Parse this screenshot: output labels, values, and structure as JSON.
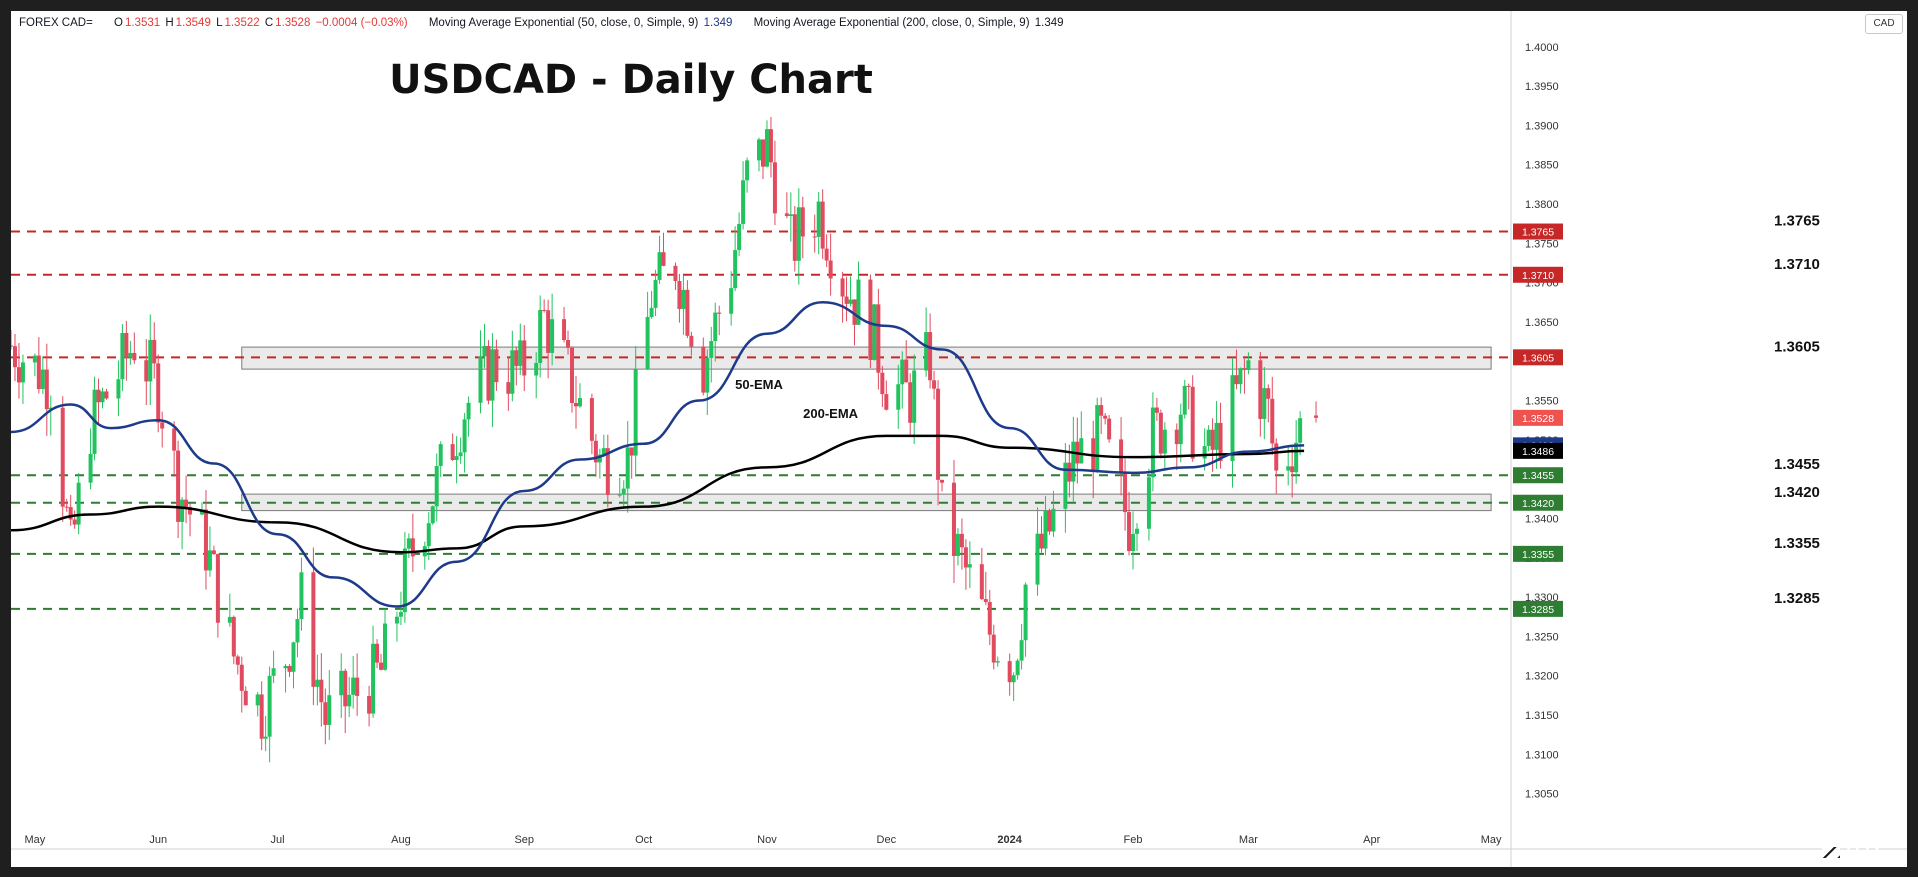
{
  "header": {
    "symbol": "FOREX CAD=",
    "open_label": "O",
    "open": "1.3531",
    "high_label": "H",
    "high": "1.3549",
    "low_label": "L",
    "low": "1.3522",
    "close_label": "C",
    "close": "1.3528",
    "change": "−0.0004 (−0.03%)",
    "ma1_text": "Moving Average Exponential (50, close, 0, Simple, 9)",
    "ma1_value": "1.349",
    "ma2_text": "Moving Average Exponential (200, close, 0, Simple, 9)",
    "ma2_value": "1.349",
    "currency": "CAD"
  },
  "logo": "LSEG",
  "chart_data": {
    "type": "candlestick",
    "title": "USDCAD - Daily Chart",
    "ylim": [
      1.3005,
      1.4015
    ],
    "y_ticks": [
      "1.4000",
      "1.3950",
      "1.3900",
      "1.3850",
      "1.3800",
      "1.3750",
      "1.3700",
      "1.3650",
      "1.3600",
      "1.3550",
      "1.3500",
      "1.3450",
      "1.3400",
      "1.3350",
      "1.3300",
      "1.3250",
      "1.3200",
      "1.3150",
      "1.3100",
      "1.3050"
    ],
    "x_labels": [
      {
        "label": "May",
        "date": "2023-05-01"
      },
      {
        "label": "Jun",
        "date": "2023-06-01"
      },
      {
        "label": "Jul",
        "date": "2023-07-01"
      },
      {
        "label": "Aug",
        "date": "2023-08-01"
      },
      {
        "label": "Sep",
        "date": "2023-09-01"
      },
      {
        "label": "Oct",
        "date": "2023-10-01"
      },
      {
        "label": "Nov",
        "date": "2023-11-01"
      },
      {
        "label": "Dec",
        "date": "2023-12-01"
      },
      {
        "label": "2024",
        "date": "2024-01-01"
      },
      {
        "label": "Feb",
        "date": "2024-02-01"
      },
      {
        "label": "Mar",
        "date": "2024-03-01"
      },
      {
        "label": "Apr",
        "date": "2024-04-01"
      },
      {
        "label": "May",
        "date": "2024-05-01"
      }
    ],
    "series": [
      {
        "name": "USDCAD",
        "closes": [
          {
            "date": "2023-04-25",
            "close": 1.362
          },
          {
            "date": "2023-05-05",
            "close": 1.3575
          },
          {
            "date": "2023-05-10",
            "close": 1.3355
          },
          {
            "date": "2023-05-15",
            "close": 1.352
          },
          {
            "date": "2023-05-22",
            "close": 1.3585
          },
          {
            "date": "2023-05-26",
            "close": 1.3625
          },
          {
            "date": "2023-06-01",
            "close": 1.3565
          },
          {
            "date": "2023-06-06",
            "close": 1.344
          },
          {
            "date": "2023-06-13",
            "close": 1.3365
          },
          {
            "date": "2023-06-20",
            "close": 1.3225
          },
          {
            "date": "2023-06-27",
            "close": 1.3155
          },
          {
            "date": "2023-07-03",
            "close": 1.3225
          },
          {
            "date": "2023-07-07",
            "close": 1.3295
          },
          {
            "date": "2023-07-13",
            "close": 1.3145
          },
          {
            "date": "2023-07-20",
            "close": 1.3175
          },
          {
            "date": "2023-07-27",
            "close": 1.3205
          },
          {
            "date": "2023-08-03",
            "close": 1.3345
          },
          {
            "date": "2023-08-10",
            "close": 1.3445
          },
          {
            "date": "2023-08-17",
            "close": 1.354
          },
          {
            "date": "2023-08-24",
            "close": 1.3595
          },
          {
            "date": "2023-08-31",
            "close": 1.3585
          },
          {
            "date": "2023-09-06",
            "close": 1.3655
          },
          {
            "date": "2023-09-13",
            "close": 1.357
          },
          {
            "date": "2023-09-20",
            "close": 1.3475
          },
          {
            "date": "2023-09-27",
            "close": 1.3475
          },
          {
            "date": "2023-10-03",
            "close": 1.3685
          },
          {
            "date": "2023-10-09",
            "close": 1.3725
          },
          {
            "date": "2023-10-16",
            "close": 1.3595
          },
          {
            "date": "2023-10-23",
            "close": 1.3715
          },
          {
            "date": "2023-10-27",
            "close": 1.3835
          },
          {
            "date": "2023-11-01",
            "close": 1.3875
          },
          {
            "date": "2023-11-07",
            "close": 1.3745
          },
          {
            "date": "2023-11-14",
            "close": 1.3795
          },
          {
            "date": "2023-11-20",
            "close": 1.3705
          },
          {
            "date": "2023-11-27",
            "close": 1.3645
          },
          {
            "date": "2023-12-01",
            "close": 1.3575
          },
          {
            "date": "2023-12-07",
            "close": 1.3555
          },
          {
            "date": "2023-12-12",
            "close": 1.3605
          },
          {
            "date": "2023-12-15",
            "close": 1.3405
          },
          {
            "date": "2023-12-20",
            "close": 1.3345
          },
          {
            "date": "2023-12-27",
            "close": 1.3255
          },
          {
            "date": "2024-01-02",
            "close": 1.3215
          },
          {
            "date": "2024-01-05",
            "close": 1.3315
          },
          {
            "date": "2024-01-11",
            "close": 1.3385
          },
          {
            "date": "2024-01-17",
            "close": 1.3475
          },
          {
            "date": "2024-01-24",
            "close": 1.3505
          },
          {
            "date": "2024-01-31",
            "close": 1.3395
          },
          {
            "date": "2024-02-06",
            "close": 1.3505
          },
          {
            "date": "2024-02-13",
            "close": 1.3545
          },
          {
            "date": "2024-02-20",
            "close": 1.3475
          },
          {
            "date": "2024-02-27",
            "close": 1.3555
          },
          {
            "date": "2024-03-01",
            "close": 1.3595
          },
          {
            "date": "2024-03-06",
            "close": 1.3535
          },
          {
            "date": "2024-03-08",
            "close": 1.3455
          },
          {
            "date": "2024-03-13",
            "close": 1.3505
          },
          {
            "date": "2024-03-15",
            "close": 1.3528
          }
        ]
      },
      {
        "name": "50-EMA",
        "points": [
          {
            "date": "2023-04-25",
            "value": 1.351
          },
          {
            "date": "2023-05-10",
            "value": 1.3545
          },
          {
            "date": "2023-05-20",
            "value": 1.3515
          },
          {
            "date": "2023-06-01",
            "value": 1.3525
          },
          {
            "date": "2023-06-15",
            "value": 1.347
          },
          {
            "date": "2023-07-01",
            "value": 1.338
          },
          {
            "date": "2023-07-15",
            "value": 1.3325
          },
          {
            "date": "2023-07-31",
            "value": 1.3288
          },
          {
            "date": "2023-08-15",
            "value": 1.3345
          },
          {
            "date": "2023-09-01",
            "value": 1.3435
          },
          {
            "date": "2023-09-15",
            "value": 1.3475
          },
          {
            "date": "2023-10-01",
            "value": 1.3495
          },
          {
            "date": "2023-10-15",
            "value": 1.355
          },
          {
            "date": "2023-11-01",
            "value": 1.3635
          },
          {
            "date": "2023-11-15",
            "value": 1.3675
          },
          {
            "date": "2023-12-01",
            "value": 1.3645
          },
          {
            "date": "2023-12-15",
            "value": 1.3615
          },
          {
            "date": "2024-01-01",
            "value": 1.3515
          },
          {
            "date": "2024-01-15",
            "value": 1.3462
          },
          {
            "date": "2024-02-01",
            "value": 1.3458
          },
          {
            "date": "2024-02-15",
            "value": 1.3465
          },
          {
            "date": "2024-03-01",
            "value": 1.3485
          },
          {
            "date": "2024-03-15",
            "value": 1.3493
          }
        ]
      },
      {
        "name": "200-EMA",
        "points": [
          {
            "date": "2023-04-25",
            "value": 1.3385
          },
          {
            "date": "2023-05-15",
            "value": 1.3405
          },
          {
            "date": "2023-06-01",
            "value": 1.3415
          },
          {
            "date": "2023-07-01",
            "value": 1.3395
          },
          {
            "date": "2023-08-01",
            "value": 1.3357
          },
          {
            "date": "2023-08-15",
            "value": 1.3362
          },
          {
            "date": "2023-09-01",
            "value": 1.339
          },
          {
            "date": "2023-10-01",
            "value": 1.3415
          },
          {
            "date": "2023-11-01",
            "value": 1.3465
          },
          {
            "date": "2023-12-01",
            "value": 1.3505
          },
          {
            "date": "2023-12-15",
            "value": 1.3505
          },
          {
            "date": "2024-01-01",
            "value": 1.349
          },
          {
            "date": "2024-02-01",
            "value": 1.3478
          },
          {
            "date": "2024-03-01",
            "value": 1.3482
          },
          {
            "date": "2024-03-15",
            "value": 1.3486
          }
        ]
      }
    ],
    "annotations": [
      {
        "text": "50-EMA",
        "date": "2023-10-30",
        "value": 1.3565
      },
      {
        "text": "200-EMA",
        "date": "2023-11-17",
        "value": 1.3528
      }
    ],
    "levels": [
      {
        "value": 1.3765,
        "label": "1.3765",
        "color": "#c62828"
      },
      {
        "value": 1.371,
        "label": "1.3710",
        "color": "#c62828"
      },
      {
        "value": 1.3605,
        "label": "1.3605",
        "color": "#c62828"
      },
      {
        "value": 1.3455,
        "label": "1.3455",
        "color": "#2e7d32"
      },
      {
        "value": 1.342,
        "label": "1.3420",
        "color": "#2e7d32"
      },
      {
        "value": 1.3355,
        "label": "1.3355",
        "color": "#2e7d32"
      },
      {
        "value": 1.3285,
        "label": "1.3285",
        "color": "#2e7d32"
      }
    ],
    "zones": [
      {
        "from": 1.359,
        "to": 1.3618,
        "start": "2023-06-22",
        "end": "2024-05-01"
      },
      {
        "from": 1.341,
        "to": 1.3431,
        "start": "2023-06-22",
        "end": "2024-05-01"
      }
    ],
    "price_tags": [
      {
        "value": 1.3528,
        "label": "1.3528",
        "color": "#ef5350",
        "series": "USDCAD"
      },
      {
        "value": 1.3493,
        "label": "1.3493",
        "color": "#1e3a8a",
        "series": "50-EMA"
      },
      {
        "value": 1.3486,
        "label": "1.3486",
        "color": "#000000",
        "series": "200-EMA"
      }
    ],
    "colors": {
      "up": "#26a69a",
      "down": "#ef5350",
      "bullish": "#22c35e",
      "bearish": "#e04b5f",
      "ema50": "#1e3a8a",
      "ema200": "#000000",
      "zone": "#d9d9d9"
    }
  }
}
